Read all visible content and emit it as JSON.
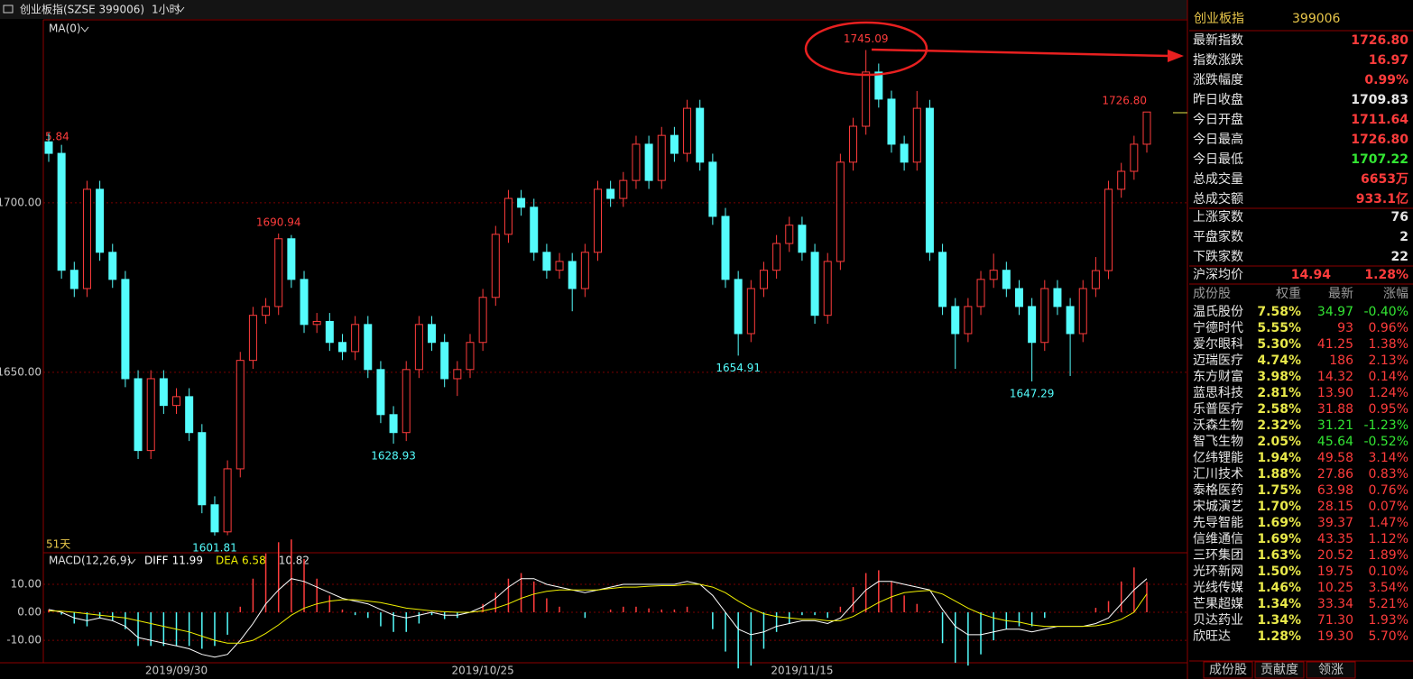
{
  "header": {
    "index_name": "创业板指(SZSE 399006)",
    "period": "1小时"
  },
  "chart_data": [
    {
      "type": "candlestick",
      "indicator_label": "MA(0)",
      "days_label": "51天",
      "edge_label": "5.84",
      "ylim": [
        1597,
        1754
      ],
      "yticks": [
        {
          "value": 1700,
          "label": "1700.00"
        },
        {
          "value": 1650,
          "label": "1650.00"
        }
      ],
      "grid": true,
      "up_color": "#ff3c3c",
      "down_color": "#54fcfc",
      "candles": [
        [
          1718.0,
          1720.5,
          1712.1,
          1714.6
        ],
        [
          1714.6,
          1717.1,
          1677.6,
          1680.1
        ],
        [
          1680.1,
          1682.6,
          1672.2,
          1674.7
        ],
        [
          1674.7,
          1706.5,
          1672.2,
          1704.0
        ],
        [
          1704.0,
          1706.5,
          1682.9,
          1685.4
        ],
        [
          1685.4,
          1687.9,
          1674.9,
          1677.4
        ],
        [
          1677.4,
          1679.9,
          1645.6,
          1648.1
        ],
        [
          1648.1,
          1650.6,
          1624.4,
          1626.9
        ],
        [
          1626.9,
          1650.6,
          1624.4,
          1648.1
        ],
        [
          1648.1,
          1650.6,
          1637.7,
          1640.2
        ],
        [
          1640.2,
          1645.3,
          1637.7,
          1642.8
        ],
        [
          1642.8,
          1645.3,
          1629.7,
          1632.2
        ],
        [
          1632.2,
          1634.7,
          1608.4,
          1610.9
        ],
        [
          1610.9,
          1613.4,
          1601.81,
          1602.9
        ],
        [
          1602.9,
          1624.0,
          1601.9,
          1621.5
        ],
        [
          1621.5,
          1656.0,
          1619.0,
          1653.5
        ],
        [
          1653.5,
          1669.3,
          1651.0,
          1666.8
        ],
        [
          1666.8,
          1671.9,
          1664.3,
          1669.4
        ],
        [
          1669.4,
          1690.94,
          1666.9,
          1689.4
        ],
        [
          1689.4,
          1690.5,
          1674.9,
          1677.4
        ],
        [
          1677.4,
          1679.9,
          1661.6,
          1664.1
        ],
        [
          1664.1,
          1667.5,
          1661.6,
          1665.0
        ],
        [
          1665.0,
          1667.5,
          1656.3,
          1658.8
        ],
        [
          1658.8,
          1661.3,
          1653.6,
          1656.1
        ],
        [
          1656.1,
          1666.6,
          1653.6,
          1664.1
        ],
        [
          1664.1,
          1666.6,
          1648.3,
          1650.8
        ],
        [
          1650.8,
          1653.3,
          1635.0,
          1637.5
        ],
        [
          1637.5,
          1640.0,
          1628.93,
          1632.2
        ],
        [
          1632.2,
          1653.3,
          1629.7,
          1650.8
        ],
        [
          1650.8,
          1666.6,
          1648.3,
          1664.1
        ],
        [
          1664.1,
          1666.6,
          1656.3,
          1658.8
        ],
        [
          1658.8,
          1661.3,
          1645.6,
          1648.1
        ],
        [
          1648.1,
          1653.3,
          1643.0,
          1650.8
        ],
        [
          1650.8,
          1661.3,
          1648.3,
          1658.8
        ],
        [
          1658.8,
          1674.6,
          1656.3,
          1672.1
        ],
        [
          1672.1,
          1693.2,
          1669.6,
          1690.7
        ],
        [
          1690.7,
          1703.8,
          1688.2,
          1701.3
        ],
        [
          1701.3,
          1703.8,
          1696.2,
          1698.7
        ],
        [
          1698.7,
          1701.2,
          1682.9,
          1685.4
        ],
        [
          1685.4,
          1687.9,
          1677.6,
          1680.1
        ],
        [
          1680.1,
          1685.2,
          1677.6,
          1682.7
        ],
        [
          1682.7,
          1685.2,
          1668.0,
          1674.7
        ],
        [
          1674.7,
          1687.9,
          1672.2,
          1685.4
        ],
        [
          1685.4,
          1706.5,
          1682.9,
          1704.0
        ],
        [
          1704.0,
          1706.5,
          1698.8,
          1701.3
        ],
        [
          1701.3,
          1709.1,
          1698.8,
          1706.6
        ],
        [
          1706.6,
          1719.8,
          1704.1,
          1717.3
        ],
        [
          1717.3,
          1719.8,
          1704.1,
          1706.6
        ],
        [
          1706.6,
          1722.4,
          1704.1,
          1719.9
        ],
        [
          1719.9,
          1722.4,
          1712.1,
          1714.6
        ],
        [
          1714.6,
          1730.4,
          1712.1,
          1727.9
        ],
        [
          1727.9,
          1730.4,
          1709.5,
          1712.0
        ],
        [
          1712.0,
          1714.5,
          1693.5,
          1696.0
        ],
        [
          1696.0,
          1698.5,
          1674.9,
          1677.4
        ],
        [
          1677.4,
          1679.9,
          1654.91,
          1661.4
        ],
        [
          1661.4,
          1677.2,
          1658.9,
          1674.7
        ],
        [
          1674.7,
          1682.6,
          1672.2,
          1680.1
        ],
        [
          1680.1,
          1690.5,
          1677.6,
          1688.0
        ],
        [
          1688.0,
          1695.9,
          1685.5,
          1693.4
        ],
        [
          1693.4,
          1695.9,
          1682.9,
          1685.4
        ],
        [
          1685.4,
          1687.9,
          1664.3,
          1666.8
        ],
        [
          1666.8,
          1685.2,
          1664.3,
          1682.7
        ],
        [
          1682.7,
          1714.5,
          1680.2,
          1712.0
        ],
        [
          1712.0,
          1725.1,
          1709.5,
          1722.6
        ],
        [
          1722.6,
          1745.09,
          1720.1,
          1738.6
        ],
        [
          1738.6,
          1741.1,
          1728.1,
          1730.6
        ],
        [
          1730.6,
          1733.1,
          1714.8,
          1717.3
        ],
        [
          1717.3,
          1719.8,
          1709.5,
          1712.0
        ],
        [
          1712.0,
          1733.0,
          1709.5,
          1727.9
        ],
        [
          1727.9,
          1730.4,
          1682.9,
          1685.4
        ],
        [
          1685.4,
          1687.9,
          1666.9,
          1669.4
        ],
        [
          1669.4,
          1671.9,
          1651.0,
          1661.4
        ],
        [
          1661.4,
          1671.9,
          1658.9,
          1669.4
        ],
        [
          1669.4,
          1679.9,
          1666.9,
          1677.4
        ],
        [
          1677.4,
          1685.0,
          1674.9,
          1680.1
        ],
        [
          1680.1,
          1682.6,
          1672.2,
          1674.7
        ],
        [
          1674.7,
          1677.2,
          1666.9,
          1669.4
        ],
        [
          1669.4,
          1671.9,
          1647.29,
          1658.8
        ],
        [
          1658.8,
          1677.2,
          1656.3,
          1674.7
        ],
        [
          1674.7,
          1677.2,
          1666.9,
          1669.4
        ],
        [
          1669.4,
          1671.9,
          1648.9,
          1661.4
        ],
        [
          1661.4,
          1677.2,
          1658.9,
          1674.7
        ],
        [
          1674.7,
          1684.0,
          1672.2,
          1680.0
        ],
        [
          1680.0,
          1706.5,
          1677.5,
          1704.0
        ],
        [
          1704.0,
          1711.8,
          1701.5,
          1709.3
        ],
        [
          1709.3,
          1719.8,
          1706.8,
          1717.3
        ],
        [
          1717.3,
          1726.8,
          1714.8,
          1726.8
        ]
      ],
      "annotations": [
        {
          "value": 1745.09,
          "label": "1745.09"
        },
        {
          "value": 1690.94,
          "label": "1690.94"
        },
        {
          "value": 1726.8,
          "label": "1726.80"
        },
        {
          "value": 1601.81,
          "label": "1601.81"
        },
        {
          "value": 1628.93,
          "label": "1628.93"
        },
        {
          "value": 1654.91,
          "label": "1654.91"
        },
        {
          "value": 1647.29,
          "label": "1647.29"
        }
      ]
    },
    {
      "type": "macd",
      "title": "MACD(12,26,9)",
      "ylim": [
        -18,
        20.6
      ],
      "yticks": [
        {
          "value": 10,
          "label": "10.00"
        },
        {
          "value": 0,
          "label": "0.00"
        },
        {
          "value": -10,
          "label": "-10.00"
        }
      ],
      "categories": [
        null,
        null,
        null,
        null,
        null,
        null,
        null,
        null,
        null,
        null,
        "2019/09/30",
        null,
        null,
        null,
        null,
        null,
        null,
        null,
        null,
        null,
        null,
        null,
        null,
        null,
        null,
        null,
        null,
        null,
        null,
        null,
        null,
        null,
        null,
        null,
        "2019/10/25",
        null,
        null,
        null,
        null,
        null,
        null,
        null,
        null,
        null,
        null,
        null,
        null,
        null,
        null,
        null,
        null,
        null,
        null,
        null,
        null,
        null,
        null,
        null,
        null,
        "2019/11/15",
        null,
        null,
        null,
        null,
        null,
        null,
        null,
        null,
        null,
        null,
        null,
        null,
        null,
        null,
        null,
        null,
        null,
        null,
        null,
        null,
        null,
        null,
        null,
        null,
        null,
        null,
        null
      ],
      "series": [
        {
          "name": "DIFF",
          "color": "#ffffff",
          "values": [
            1,
            0,
            -2,
            -3,
            -2,
            -3,
            -5,
            -9,
            -10,
            -11,
            -12,
            -13,
            -15,
            -16,
            -15,
            -10,
            -4,
            3,
            8,
            12,
            11,
            9,
            7,
            5,
            4,
            3,
            1,
            -1,
            -2,
            -1,
            0,
            -1,
            -1,
            0,
            2,
            5,
            9,
            12,
            12,
            10,
            9,
            8,
            7,
            8,
            9,
            10,
            10,
            10,
            10,
            10,
            11,
            10,
            6,
            0,
            -6,
            -8,
            -7,
            -5,
            -4,
            -3,
            -3,
            -4,
            -2,
            3,
            8,
            11,
            11,
            10,
            9,
            8,
            1,
            -5,
            -8,
            -8,
            -7,
            -6,
            -6,
            -7,
            -6,
            -5,
            -5,
            -5,
            -4,
            -2,
            3,
            8,
            11.99
          ]
        },
        {
          "name": "DEA",
          "color": "#f0f000",
          "values": [
            0.5,
            0.4,
            0,
            -0.5,
            -1,
            -1.5,
            -2,
            -3,
            -4,
            -5,
            -6,
            -7,
            -8.5,
            -10,
            -11,
            -11,
            -10,
            -7.5,
            -4.5,
            -1,
            1.5,
            3,
            4,
            4.5,
            4.5,
            4,
            3.5,
            2.5,
            1.5,
            1,
            0.5,
            0.2,
            0,
            0,
            0.5,
            1.5,
            3,
            5,
            6.5,
            7.5,
            8,
            8,
            8,
            8,
            8.5,
            9,
            9,
            9.3,
            9.5,
            9.5,
            10,
            10,
            9,
            7,
            4,
            1.5,
            -0.5,
            -1.5,
            -2,
            -2.5,
            -2.5,
            -3,
            -3,
            -1.5,
            1,
            3.5,
            5.5,
            7,
            7.5,
            7.8,
            6.5,
            4,
            1.5,
            -0.5,
            -2,
            -3,
            -3.5,
            -4.5,
            -5,
            -5,
            -5,
            -5,
            -4.8,
            -4,
            -2.5,
            0,
            6.58
          ]
        }
      ],
      "bars": {
        "up_color": "#ff3c3c",
        "down_color": "#54fcfc",
        "values": [
          1,
          -0.8,
          -4,
          -5,
          -2,
          -3,
          -6,
          -12,
          -12,
          -12,
          -12,
          -12,
          -13,
          -12,
          -8,
          2,
          12,
          21,
          25,
          26,
          19,
          12,
          6,
          1,
          -1,
          -2,
          -5,
          -7,
          -7,
          -4,
          -1,
          -2.4,
          -2,
          0,
          3,
          7,
          12,
          14,
          11,
          5,
          2,
          0,
          -2,
          0,
          1,
          2,
          2,
          1.4,
          1,
          1,
          2,
          0,
          -6,
          -14,
          -20,
          -19,
          -13,
          -7,
          -4,
          -1,
          -1,
          -2,
          2,
          9,
          14,
          15,
          11,
          6,
          3,
          0.4,
          -11,
          -18,
          -19,
          -15,
          -10,
          -6,
          -5,
          -5,
          -2,
          0,
          0,
          0,
          1.6,
          4,
          11,
          16,
          10.82
        ]
      }
    }
  ],
  "panel": {
    "title": "创业板指",
    "code": "399006",
    "quotes": [
      {
        "label": "最新指数",
        "value": "1726.80",
        "color": "#ff3c3c"
      },
      {
        "label": "指数涨跌",
        "value": "16.97",
        "color": "#ff3c3c"
      },
      {
        "label": "涨跌幅度",
        "value": "0.99%",
        "color": "#ff3c3c"
      },
      {
        "label": "昨日收盘",
        "value": "1709.83",
        "color": "#e6e6e6"
      },
      {
        "label": "今日开盘",
        "value": "1711.64",
        "color": "#ff3c3c"
      },
      {
        "label": "今日最高",
        "value": "1726.80",
        "color": "#ff3c3c"
      },
      {
        "label": "今日最低",
        "value": "1707.22",
        "color": "#33e633"
      },
      {
        "label": "总成交量",
        "value": "6653万",
        "color": "#ff3c3c"
      },
      {
        "label": "总成交额",
        "value": "933.1亿",
        "color": "#ff3c3c"
      }
    ],
    "breadth": [
      {
        "label": "上涨家数",
        "value": "76"
      },
      {
        "label": "平盘家数",
        "value": "2"
      },
      {
        "label": "下跌家数",
        "value": "22"
      }
    ],
    "avg": {
      "label": "沪深均价",
      "price": "14.94",
      "change": "1.28%"
    },
    "columns": [
      "成份股",
      "权重",
      "最新",
      "涨幅"
    ],
    "rows": [
      [
        "温氏股份",
        "7.58%",
        "34.97",
        "-0.40%"
      ],
      [
        "宁德时代",
        "5.55%",
        "93",
        "0.96%"
      ],
      [
        "爱尔眼科",
        "5.30%",
        "41.25",
        "1.38%"
      ],
      [
        "迈瑞医疗",
        "4.74%",
        "186",
        "2.13%"
      ],
      [
        "东方财富",
        "3.98%",
        "14.32",
        "0.14%"
      ],
      [
        "蓝思科技",
        "2.81%",
        "13.90",
        "1.24%"
      ],
      [
        "乐普医疗",
        "2.58%",
        "31.88",
        "0.95%"
      ],
      [
        "沃森生物",
        "2.32%",
        "31.21",
        "-1.23%"
      ],
      [
        "智飞生物",
        "2.05%",
        "45.64",
        "-0.52%"
      ],
      [
        "亿纬锂能",
        "1.94%",
        "49.58",
        "3.14%"
      ],
      [
        "汇川技术",
        "1.88%",
        "27.86",
        "0.83%"
      ],
      [
        "泰格医药",
        "1.75%",
        "63.98",
        "0.76%"
      ],
      [
        "宋城演艺",
        "1.70%",
        "28.15",
        "0.07%"
      ],
      [
        "先导智能",
        "1.69%",
        "39.37",
        "1.47%"
      ],
      [
        "信维通信",
        "1.69%",
        "43.35",
        "1.12%"
      ],
      [
        "三环集团",
        "1.63%",
        "20.52",
        "1.89%"
      ],
      [
        "光环新网",
        "1.50%",
        "19.75",
        "0.10%"
      ],
      [
        "光线传媒",
        "1.46%",
        "10.25",
        "3.54%"
      ],
      [
        "芒果超媒",
        "1.34%",
        "33.34",
        "5.21%"
      ],
      [
        "贝达药业",
        "1.34%",
        "71.30",
        "1.93%"
      ],
      [
        "欣旺达",
        "1.28%",
        "19.30",
        "5.70%"
      ]
    ],
    "tabs": [
      "成份股",
      "贡献度",
      "领涨"
    ]
  }
}
